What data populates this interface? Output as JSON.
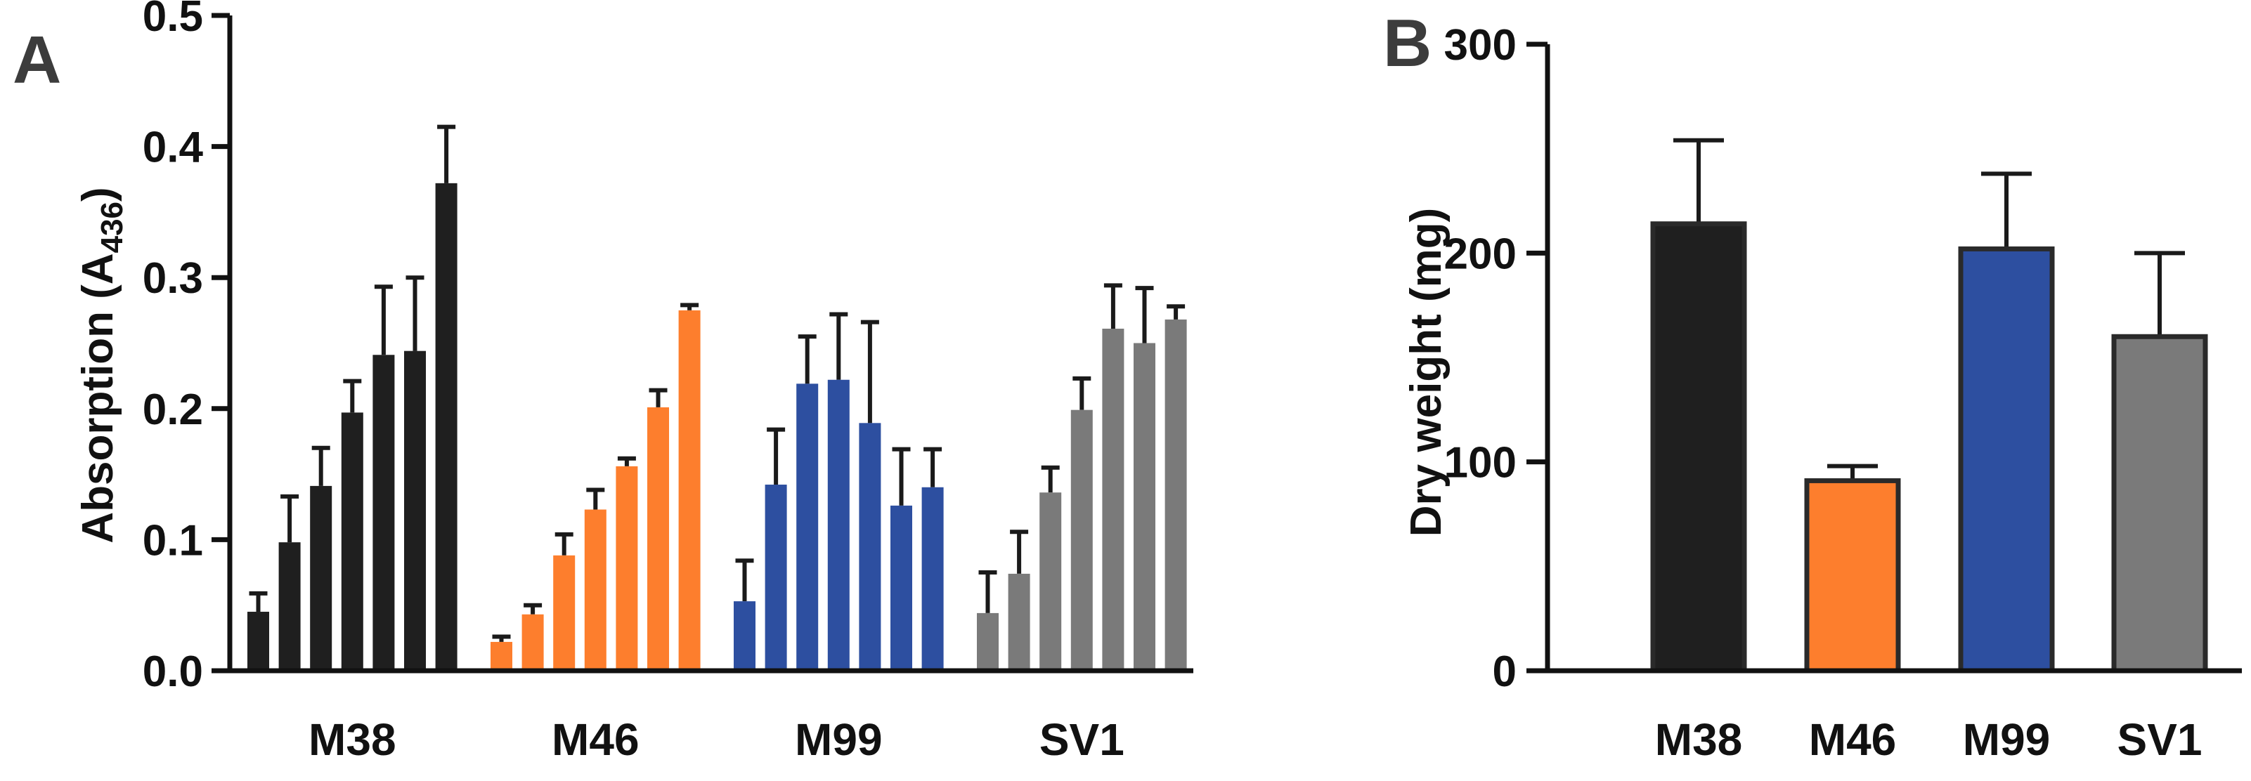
{
  "chart_data": [
    {
      "panel": "A",
      "type": "bar",
      "ylabel": "Absorption (A",
      "ylabel_subscript": "436",
      "ylabel_close": ")",
      "ylim": [
        0,
        0.5
      ],
      "yticks": [
        "0.0",
        "0.1",
        "0.2",
        "0.3",
        "0.4",
        "0.5"
      ],
      "ytick_values": [
        0,
        0.1,
        0.2,
        0.3,
        0.4,
        0.5
      ],
      "groups": [
        {
          "name": "M38",
          "color": "#1f1f1f",
          "values": [
            0.045,
            0.098,
            0.141,
            0.197,
            0.241,
            0.244,
            0.372
          ],
          "errors": [
            0.014,
            0.035,
            0.029,
            0.024,
            0.052,
            0.056,
            0.043
          ]
        },
        {
          "name": "M46",
          "color": "#fd7e2d",
          "values": [
            0.022,
            0.043,
            0.088,
            0.123,
            0.156,
            0.201,
            0.275
          ],
          "errors": [
            0.004,
            0.007,
            0.016,
            0.015,
            0.006,
            0.013,
            0.004
          ]
        },
        {
          "name": "M99",
          "color": "#2d4fa0",
          "values": [
            0.053,
            0.142,
            0.219,
            0.222,
            0.189,
            0.126,
            0.14
          ],
          "errors": [
            0.031,
            0.042,
            0.036,
            0.05,
            0.077,
            0.043,
            0.029
          ]
        },
        {
          "name": "SV1",
          "color": "#7a7a7a",
          "values": [
            0.044,
            0.074,
            0.136,
            0.199,
            0.261,
            0.25,
            0.268
          ],
          "errors": [
            0.031,
            0.032,
            0.019,
            0.024,
            0.033,
            0.042,
            0.01
          ]
        }
      ]
    },
    {
      "panel": "B",
      "type": "bar",
      "ylabel": "Dry weight (mg)",
      "ylim": [
        0,
        300
      ],
      "yticks": [
        "0",
        "100",
        "200",
        "300"
      ],
      "ytick_values": [
        0,
        100,
        200,
        300
      ],
      "categories": [
        "M38",
        "M46",
        "M99",
        "SV1"
      ],
      "colors": [
        "#1f1f1f",
        "#fd7e2d",
        "#2d4fa0",
        "#7a7a7a"
      ],
      "values": [
        214,
        91,
        202,
        160
      ],
      "errors": [
        40,
        7,
        36,
        40
      ]
    }
  ]
}
